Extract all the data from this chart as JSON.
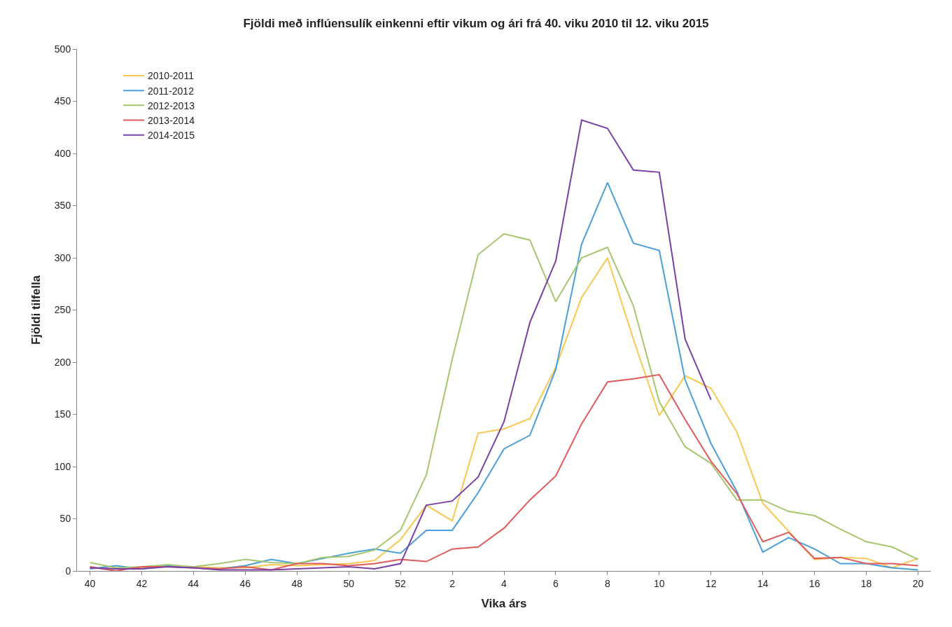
{
  "chart_data": {
    "type": "line",
    "title": "Fjöldi með inflúensulík einkenni eftir vikum og ári frá 40. viku 2010 til 12. viku 2015",
    "xlabel": "Vika árs",
    "ylabel": "Fjöldi tilfella",
    "categories": [
      "40",
      null,
      "42",
      null,
      "44",
      null,
      "46",
      null,
      "48",
      null,
      "50",
      null,
      "52",
      null,
      "2",
      null,
      "4",
      null,
      "6",
      null,
      "8",
      null,
      "10",
      null,
      "12",
      null,
      "14",
      null,
      "16",
      null,
      "18",
      null,
      "20"
    ],
    "ylim": [
      0,
      500
    ],
    "yticks": [
      0,
      50,
      100,
      150,
      200,
      250,
      300,
      350,
      400,
      450,
      500
    ],
    "grid": false,
    "legend": "top left",
    "marker": "none",
    "line_style": "solid",
    "series": [
      {
        "name": "2010-2011",
        "color": "#f9c74f",
        "values": [
          3,
          2,
          3,
          4,
          4,
          3,
          3,
          6,
          5,
          6,
          7,
          10,
          30,
          63,
          48,
          132,
          136,
          146,
          195,
          262,
          300,
          222,
          149,
          187,
          175,
          133,
          65,
          38,
          11,
          13,
          12,
          3,
          12
        ]
      },
      {
        "name": "2011-2012",
        "color": "#4a9fd8",
        "values": [
          2,
          5,
          2,
          5,
          3,
          2,
          5,
          11,
          7,
          12,
          17,
          21,
          17,
          39,
          39,
          75,
          117,
          130,
          193,
          313,
          372,
          314,
          307,
          183,
          122,
          76,
          18,
          32,
          21,
          7,
          7,
          3,
          1
        ]
      },
      {
        "name": "2012-2013",
        "color": "#a5c66d",
        "values": [
          8,
          3,
          4,
          6,
          4,
          7,
          11,
          8,
          7,
          13,
          14,
          20,
          39,
          92,
          203,
          303,
          323,
          317,
          258,
          300,
          310,
          254,
          162,
          119,
          103,
          68,
          68,
          57,
          53,
          40,
          28,
          23,
          11
        ]
      },
      {
        "name": "2013-2014",
        "color": "#e05a5a",
        "values": [
          4,
          0,
          4,
          4,
          3,
          2,
          4,
          1,
          7,
          7,
          5,
          7,
          11,
          9,
          21,
          23,
          41,
          68,
          91,
          141,
          181,
          184,
          188,
          145,
          105,
          74,
          28,
          37,
          12,
          13,
          7,
          7,
          5
        ]
      },
      {
        "name": "2014-2015",
        "color": "#7b3fa6",
        "values": [
          3,
          2,
          2,
          4,
          3,
          1,
          1,
          1,
          2,
          3,
          4,
          2,
          7,
          63,
          67,
          90,
          143,
          238,
          297,
          432,
          424,
          384,
          382,
          222,
          164,
          null,
          null,
          null,
          null,
          null,
          null,
          null,
          null
        ]
      }
    ]
  }
}
